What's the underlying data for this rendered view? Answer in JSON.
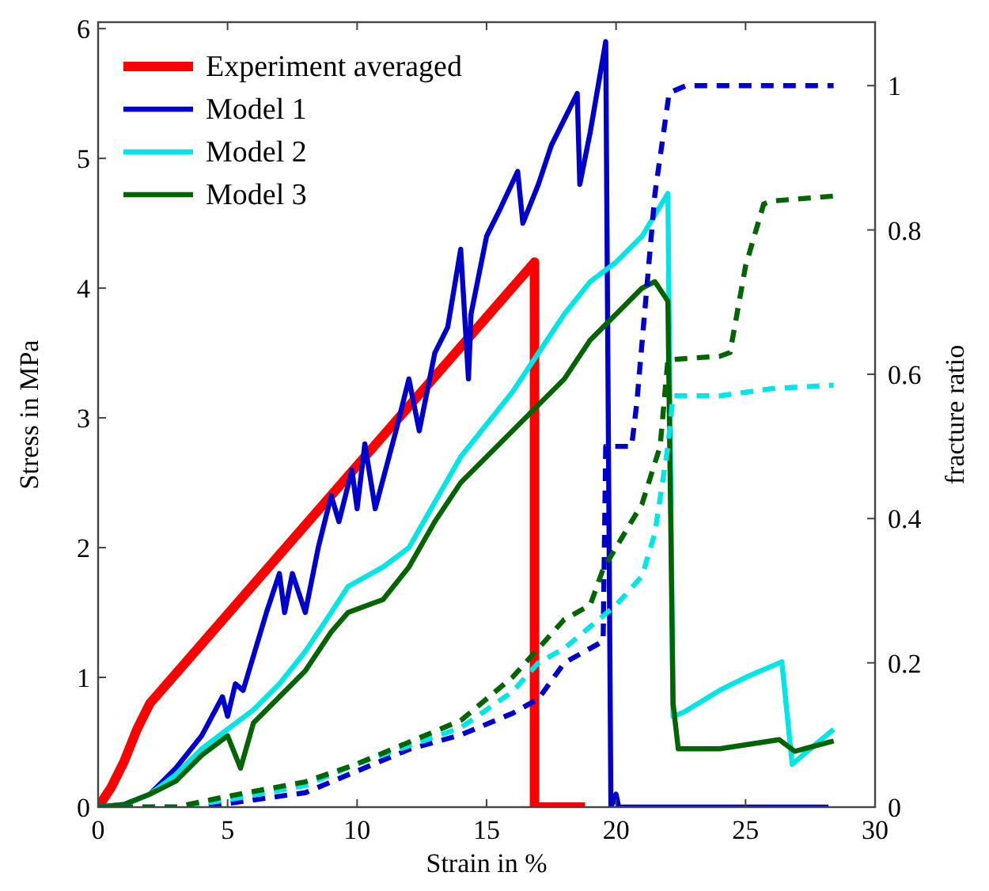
{
  "chart_data": {
    "type": "line",
    "xlabel": "Strain in %",
    "ylabel": "Stress in MPa",
    "y2label": "fracture ratio",
    "xlim": [
      0,
      30
    ],
    "xticks": [
      0,
      5,
      10,
      15,
      20,
      25,
      30
    ],
    "ylim": [
      0,
      6.05
    ],
    "yticks": [
      0,
      1,
      2,
      3,
      4,
      5,
      6
    ],
    "y2lim": [
      0,
      1.088
    ],
    "y2ticks": [
      0,
      0.2,
      0.4,
      0.6,
      0.8,
      1
    ],
    "grid": false,
    "legend": "top left",
    "series": [
      {
        "name": "Experiment averaged",
        "color": "#ff0000",
        "line_style": "solid",
        "x": [
          0,
          0.5,
          1,
          1.5,
          2,
          16.85,
          16.85,
          18.8
        ],
        "values": [
          0,
          0.15,
          0.35,
          0.6,
          0.8,
          4.2,
          0,
          0
        ]
      },
      {
        "name": "Model 1",
        "color": "#0000cc",
        "line_style": "solid",
        "x": [
          0,
          1,
          2,
          3,
          4,
          4.8,
          5,
          5.3,
          5.6,
          6.5,
          7,
          7.2,
          7.5,
          8,
          8.5,
          9,
          9.3,
          9.8,
          10,
          10.3,
          10.7,
          11.5,
          12,
          12.4,
          13,
          13.5,
          14,
          14.3,
          14.4,
          15,
          15.5,
          16.2,
          16.4,
          17,
          17.5,
          18,
          18.5,
          18.6,
          19,
          19.6,
          19.8,
          20,
          20.1,
          20.3,
          28.2
        ],
        "values": [
          0,
          0.02,
          0.1,
          0.3,
          0.55,
          0.85,
          0.7,
          0.95,
          0.9,
          1.5,
          1.8,
          1.5,
          1.8,
          1.5,
          2.0,
          2.4,
          2.2,
          2.6,
          2.3,
          2.8,
          2.3,
          2.9,
          3.3,
          2.9,
          3.5,
          3.7,
          4.3,
          3.3,
          3.8,
          4.4,
          4.6,
          4.9,
          4.5,
          4.8,
          5.1,
          5.3,
          5.5,
          4.8,
          5.2,
          5.9,
          0,
          0.1,
          0,
          0,
          0
        ]
      },
      {
        "name": "Model 2",
        "color": "#00e5e5",
        "line_style": "solid",
        "x": [
          0,
          1,
          2,
          3,
          4,
          5,
          6,
          7,
          8,
          9,
          9.65,
          11,
          12,
          13,
          14,
          15,
          16,
          17,
          18,
          19,
          20,
          21,
          22,
          22.2,
          22.6,
          24,
          25,
          26.4,
          26.8,
          27.5,
          28.4
        ],
        "values": [
          0,
          0.02,
          0.1,
          0.25,
          0.45,
          0.6,
          0.75,
          0.95,
          1.2,
          1.5,
          1.7,
          1.85,
          2.0,
          2.35,
          2.7,
          2.95,
          3.2,
          3.5,
          3.8,
          4.05,
          4.2,
          4.4,
          4.73,
          0.7,
          0.73,
          0.9,
          1.0,
          1.12,
          0.33,
          0.45,
          0.6
        ]
      },
      {
        "name": "Model 3",
        "color": "#006400",
        "line_style": "solid",
        "x": [
          0,
          1,
          2,
          3,
          4,
          5,
          5.5,
          6,
          7,
          8,
          9,
          9.65,
          11,
          12,
          13,
          14,
          15,
          16,
          17,
          18,
          19,
          20,
          21,
          21.5,
          22,
          22.2,
          22.4,
          24,
          26.3,
          26.9,
          28.4
        ],
        "values": [
          0,
          0.02,
          0.1,
          0.2,
          0.4,
          0.55,
          0.3,
          0.65,
          0.85,
          1.05,
          1.35,
          1.5,
          1.6,
          1.85,
          2.2,
          2.5,
          2.7,
          2.9,
          3.1,
          3.3,
          3.6,
          3.8,
          4.0,
          4.05,
          3.9,
          0.8,
          0.45,
          0.45,
          0.52,
          0.43,
          0.51
        ]
      },
      {
        "color": "#0000cc",
        "axis": "y2",
        "line_style": "dashed",
        "x": [
          0,
          4,
          5,
          8,
          10,
          12,
          14,
          16,
          17,
          18,
          19,
          19.5,
          19.6,
          20.6,
          20.8,
          21.5,
          22.05,
          22.7,
          28.4
        ],
        "values": [
          0,
          0,
          0.005,
          0.02,
          0.05,
          0.08,
          0.1,
          0.13,
          0.15,
          0.2,
          0.22,
          0.23,
          0.5,
          0.5,
          0.56,
          0.85,
          0.99,
          1.0,
          1.0
        ]
      },
      {
        "color": "#00e5e5",
        "axis": "y2",
        "line_style": "dashed",
        "x": [
          0,
          3,
          5,
          8,
          10,
          12,
          14,
          16,
          17,
          18,
          19,
          20,
          21,
          21.5,
          22,
          22.2,
          24,
          25,
          26,
          28.4
        ],
        "values": [
          0,
          0,
          0.01,
          0.03,
          0.06,
          0.085,
          0.11,
          0.16,
          0.2,
          0.22,
          0.25,
          0.28,
          0.32,
          0.38,
          0.5,
          0.57,
          0.57,
          0.575,
          0.58,
          0.585
        ]
      },
      {
        "color": "#006400",
        "axis": "y2",
        "line_style": "dashed",
        "x": [
          0,
          3,
          5,
          8,
          10,
          12,
          14,
          15,
          16,
          17,
          18,
          19,
          19.5,
          20,
          21,
          21.7,
          22,
          24,
          24.4,
          25,
          25.7,
          26,
          28.4
        ],
        "values": [
          0,
          0,
          0.015,
          0.035,
          0.06,
          0.09,
          0.12,
          0.15,
          0.18,
          0.22,
          0.26,
          0.28,
          0.33,
          0.36,
          0.42,
          0.5,
          0.62,
          0.625,
          0.63,
          0.75,
          0.836,
          0.84,
          0.847
        ]
      }
    ]
  }
}
